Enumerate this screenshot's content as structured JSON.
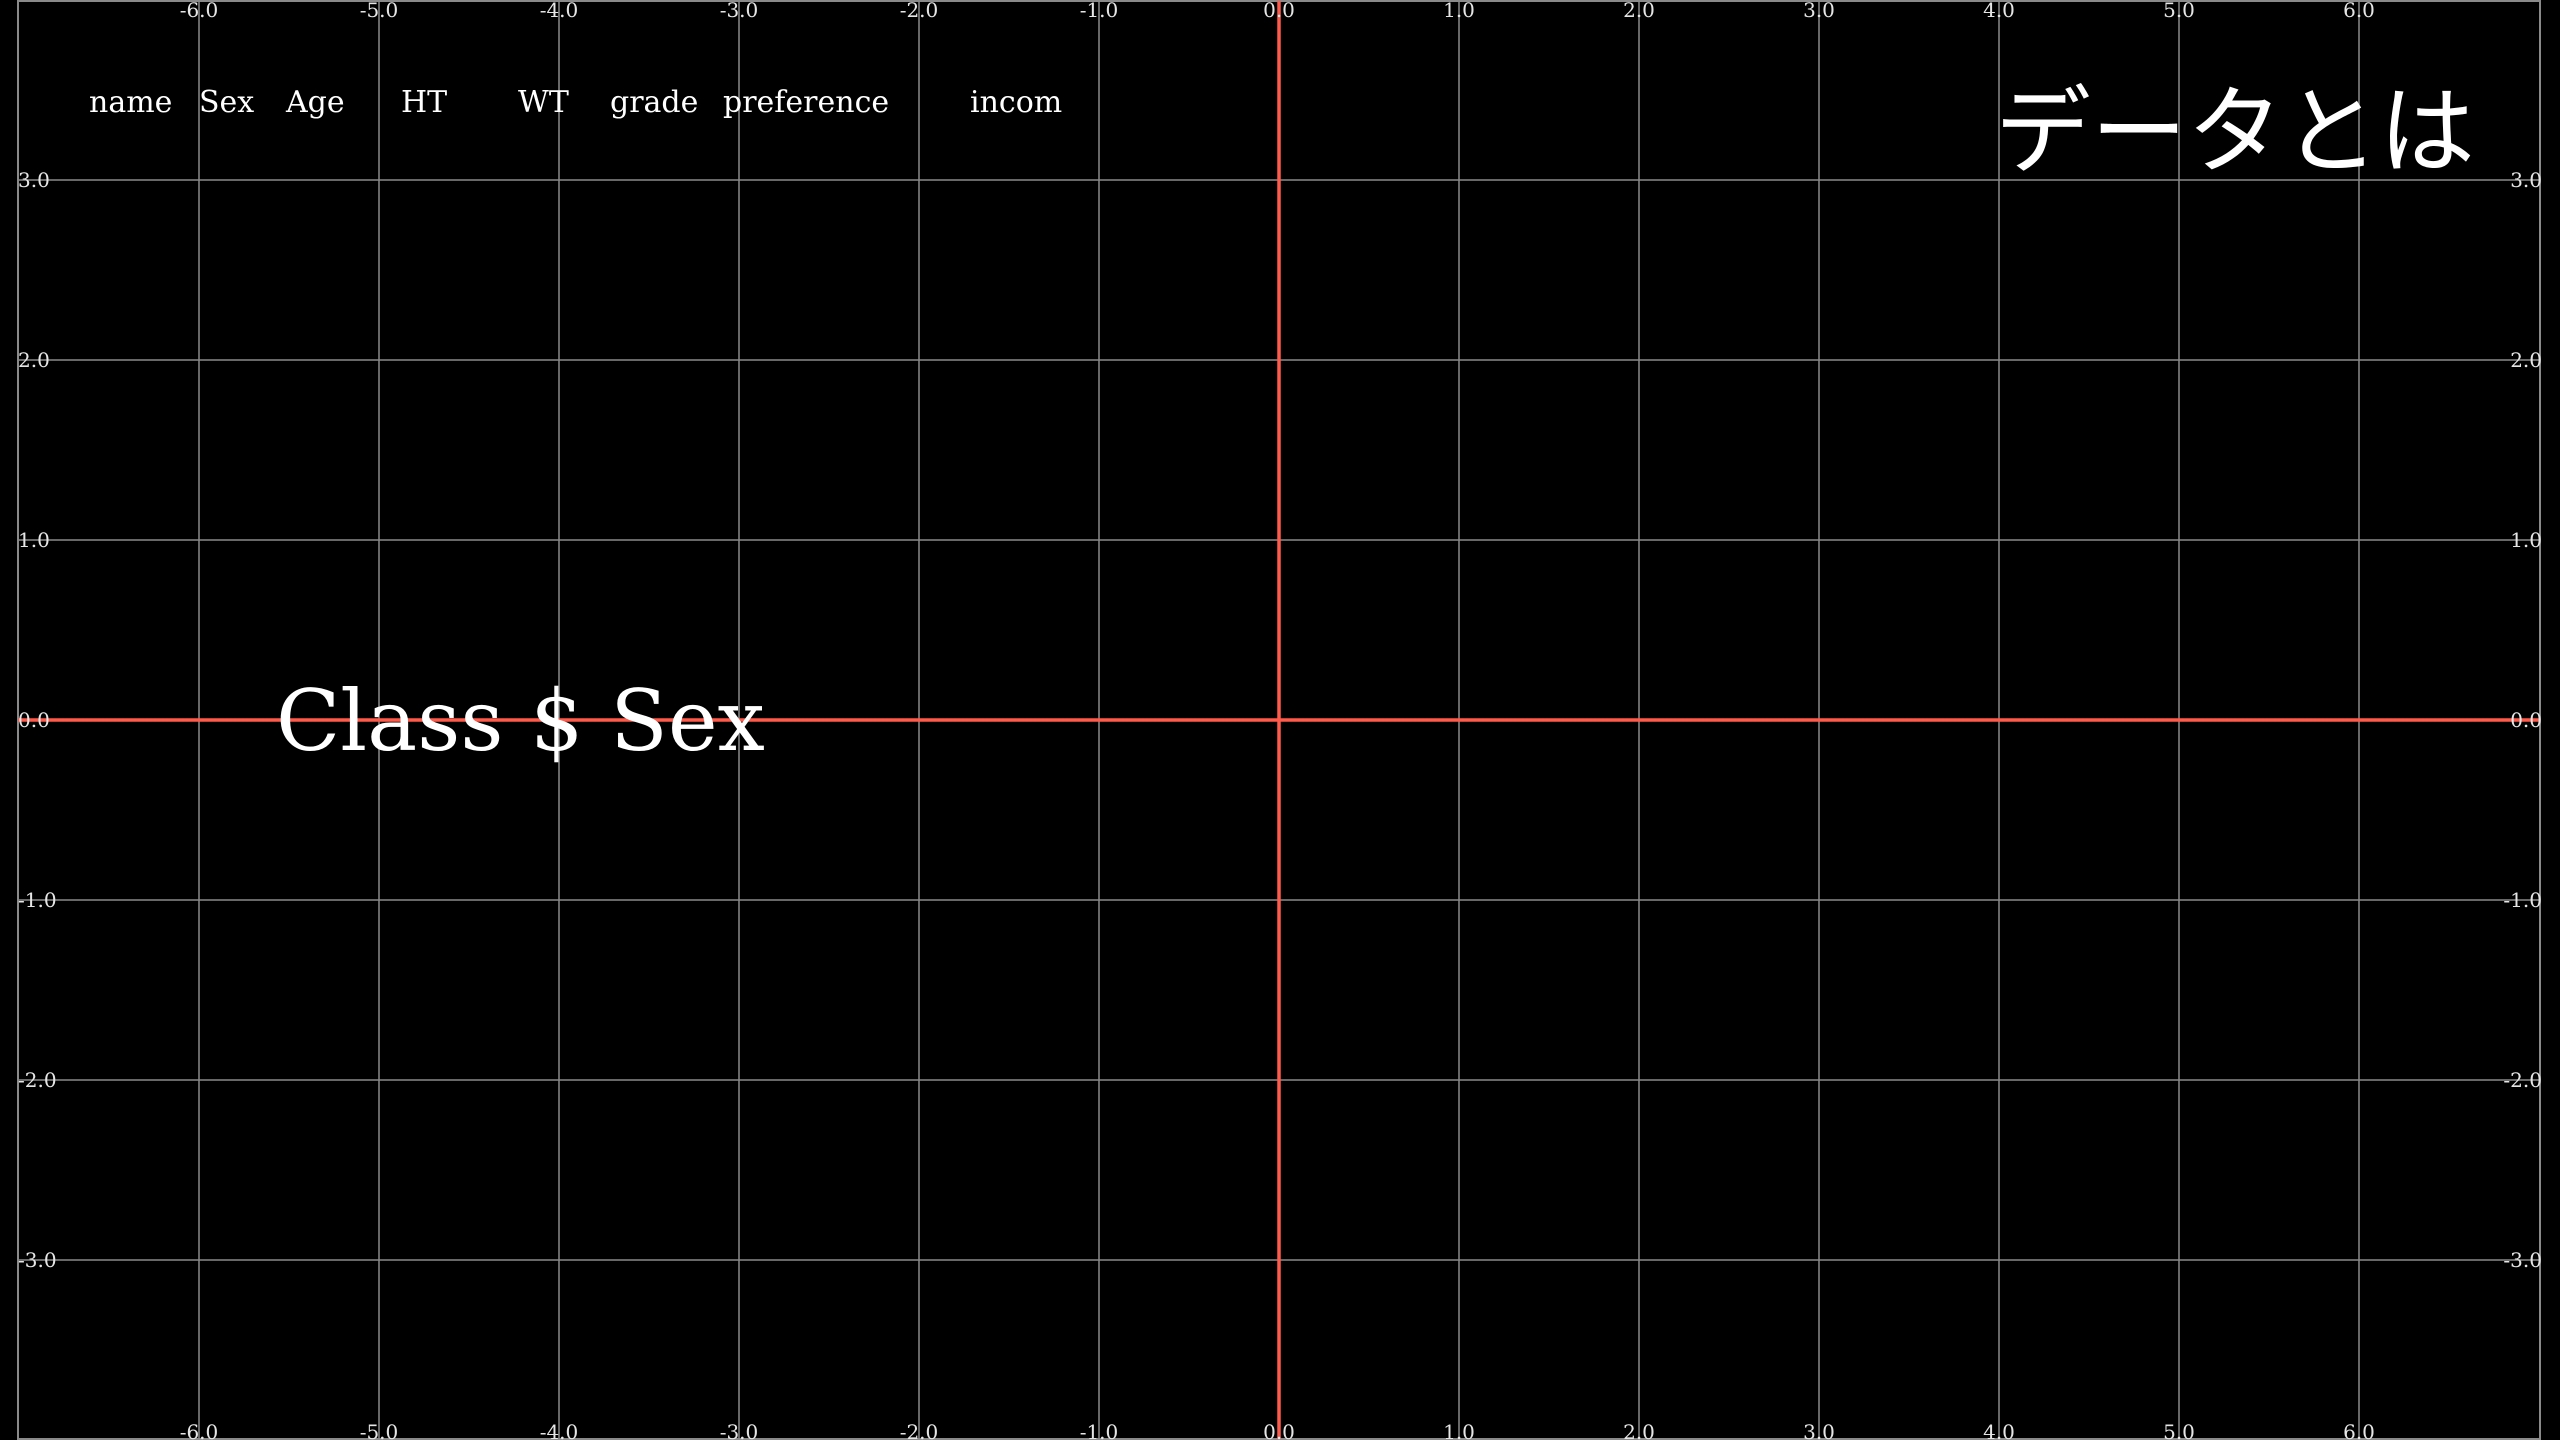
{
  "title": "データとは",
  "header_labels": [
    "name",
    "Sex",
    "Age",
    "HT",
    "WT",
    "grade",
    "preference",
    "incom"
  ],
  "formula": "Class $ Sex",
  "colors": {
    "background": "#000000",
    "grid": "#8a8a8a",
    "axis": "#ff5a4a",
    "text": "#ffffff"
  },
  "plane": {
    "x_ticks": [
      "-6.0",
      "-5.0",
      "-4.0",
      "-3.0",
      "-2.0",
      "-1.0",
      "0.0",
      "1.0",
      "2.0",
      "3.0",
      "4.0",
      "5.0",
      "6.0"
    ],
    "y_ticks": [
      "3.0",
      "2.0",
      "1.0",
      "0.0",
      "-1.0",
      "-2.0",
      "-3.0"
    ]
  }
}
